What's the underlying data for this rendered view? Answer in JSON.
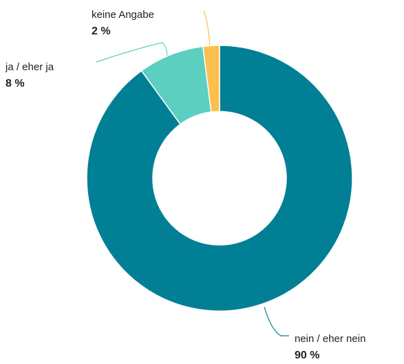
{
  "chart_data": {
    "type": "pie",
    "categories": [
      "nein / eher nein",
      "ja / eher ja",
      "keine Angabe"
    ],
    "values": [
      90,
      8,
      2
    ],
    "value_labels": [
      "90 %",
      "8 %",
      "2 %"
    ],
    "colors": [
      "#017f95",
      "#5ccfc1",
      "#fbc04e"
    ]
  }
}
